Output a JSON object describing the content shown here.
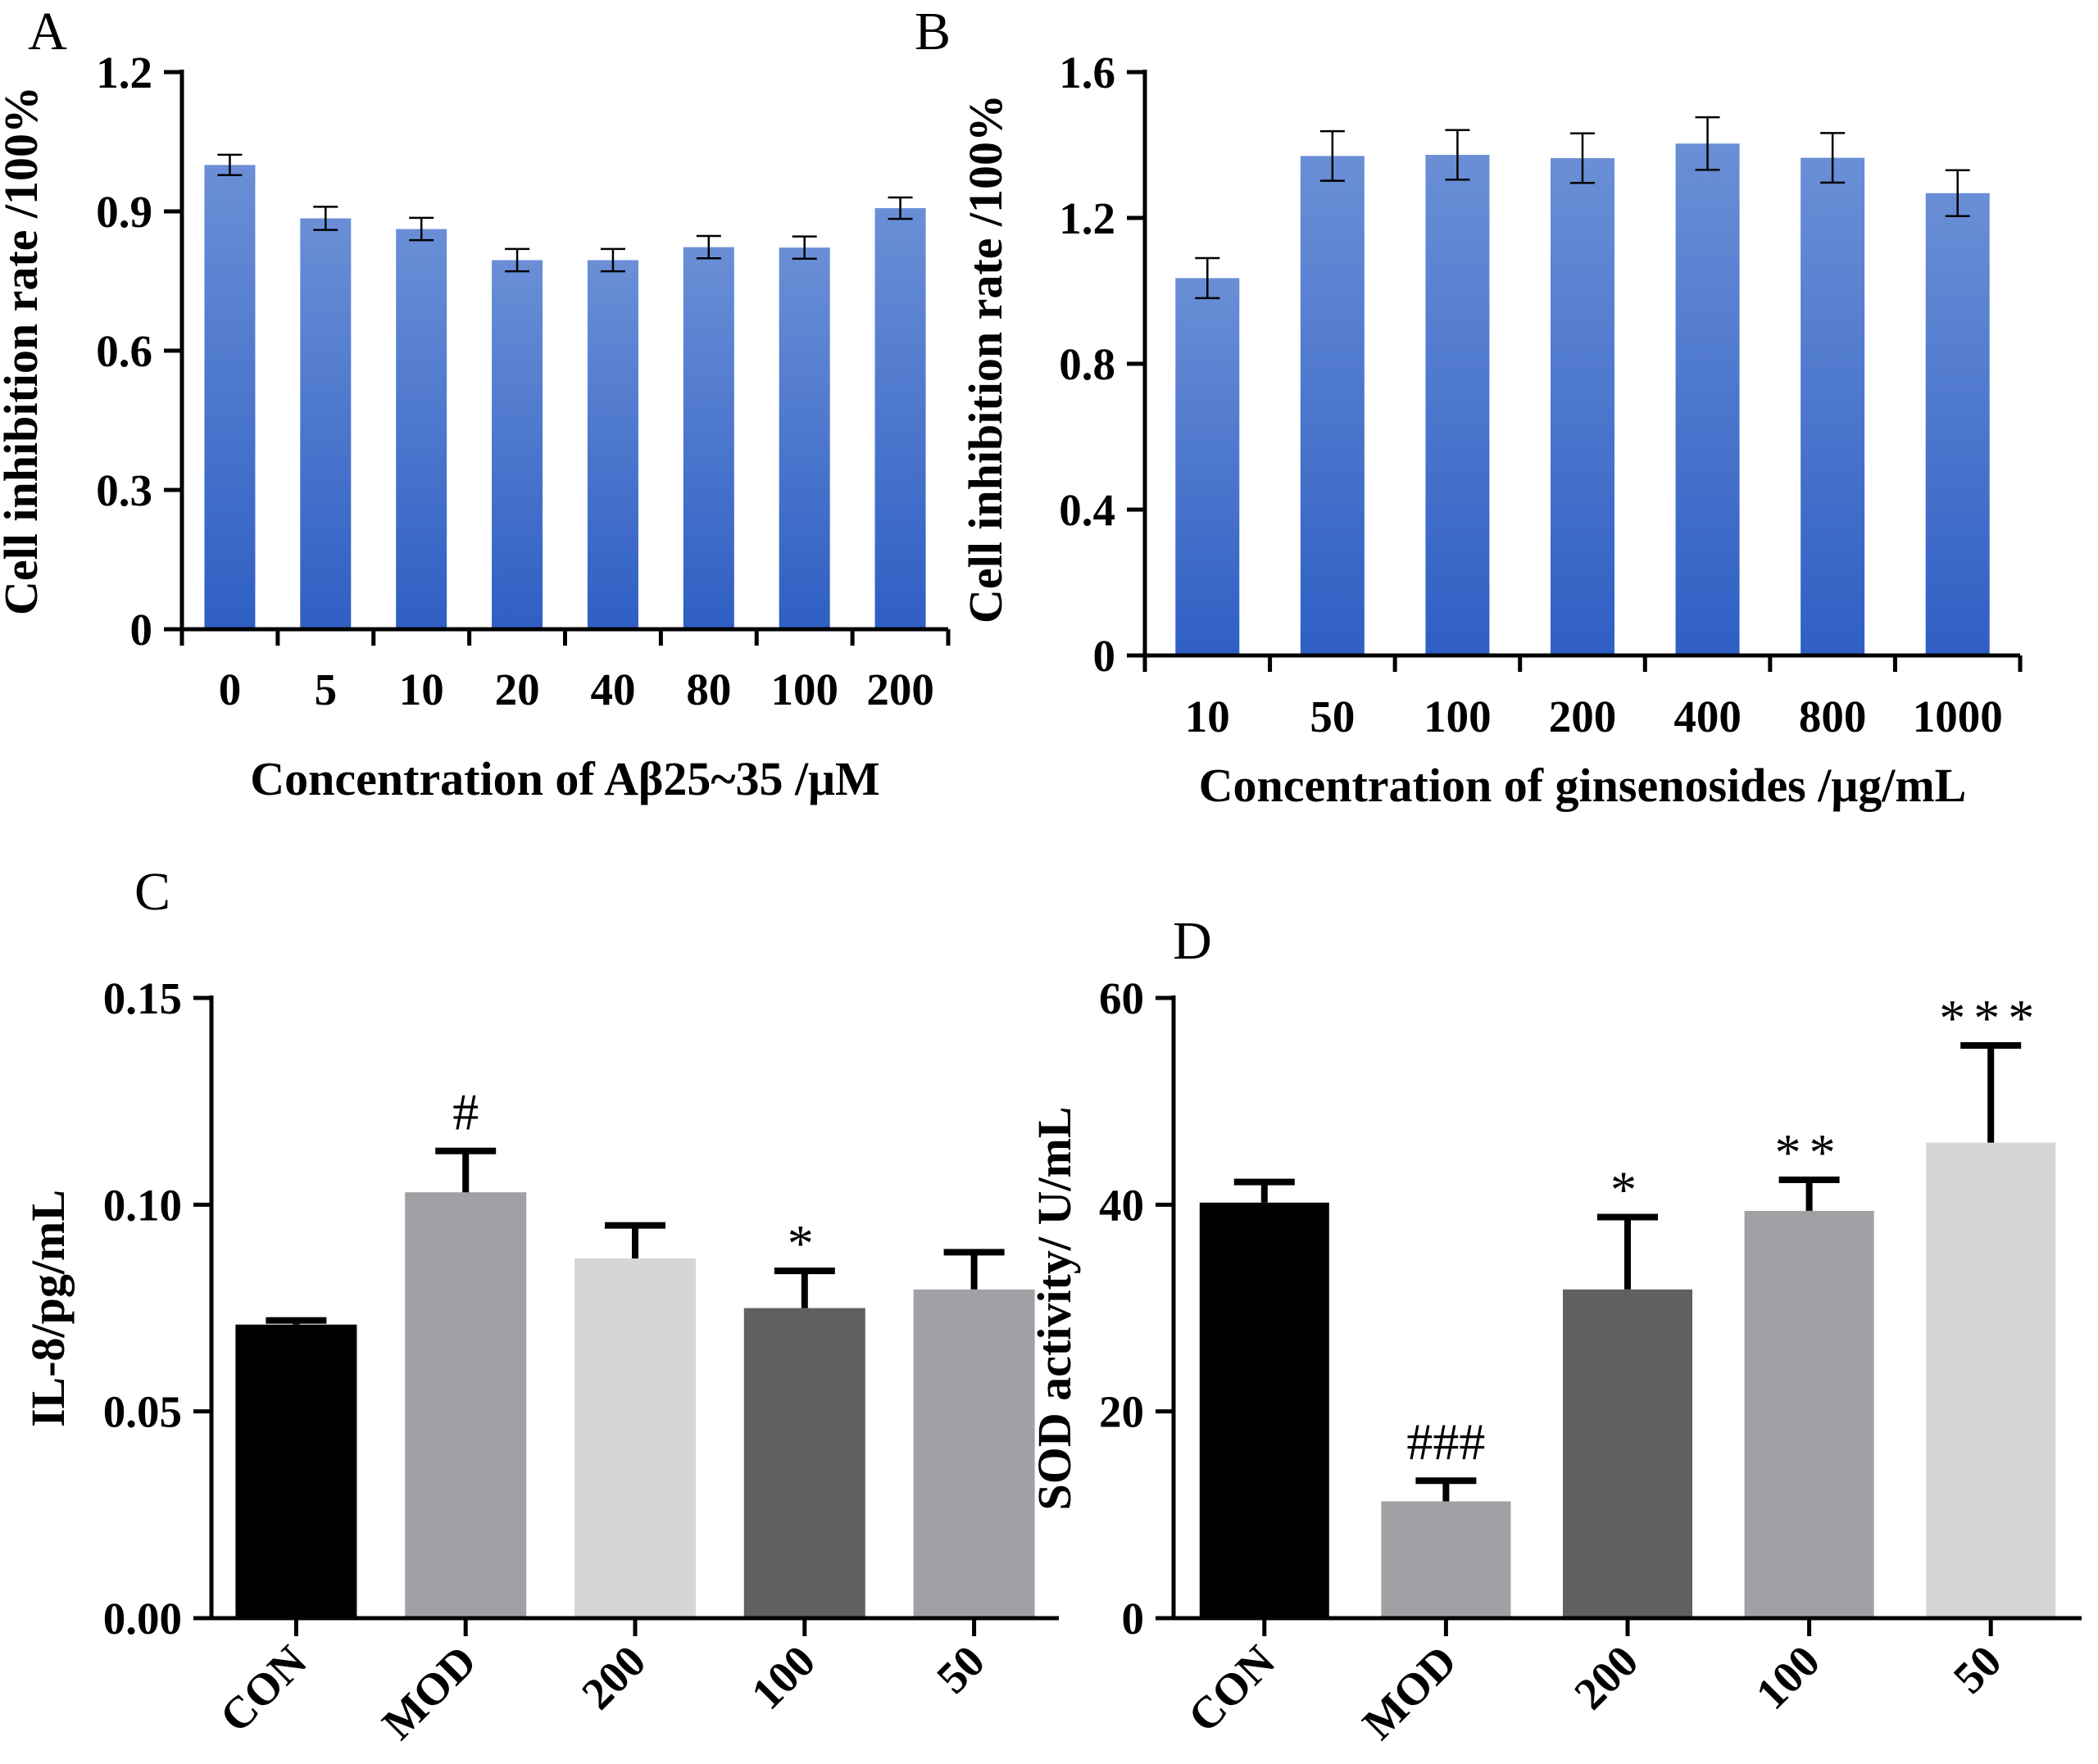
{
  "chart_data": [
    {
      "panel": "A",
      "type": "bar",
      "categories": [
        "0",
        "5",
        "10",
        "20",
        "40",
        "80",
        "100",
        "200"
      ],
      "values": [
        1.0,
        0.885,
        0.862,
        0.795,
        0.795,
        0.823,
        0.822,
        0.907
      ],
      "errors": [
        0.022,
        0.025,
        0.024,
        0.024,
        0.024,
        0.024,
        0.024,
        0.023
      ],
      "xlabel": "Concentration of Aβ25~35 /μM",
      "ylabel": "Cell inhibition rate /100%",
      "ylim": [
        0,
        1.2
      ],
      "yticks": [
        "0",
        "0.3",
        "0.6",
        "0.9",
        "1.2"
      ],
      "color": "#4472c4",
      "annotations": []
    },
    {
      "panel": "B",
      "type": "bar",
      "categories": [
        "10",
        "50",
        "100",
        "200",
        "400",
        "800",
        "1000"
      ],
      "values": [
        1.035,
        1.37,
        1.373,
        1.364,
        1.404,
        1.365,
        1.268
      ],
      "errors": [
        0.055,
        0.068,
        0.068,
        0.068,
        0.072,
        0.068,
        0.063
      ],
      "xlabel": "Concentration of  ginsenosides /μg/mL",
      "ylabel": "Cell inhibition rate /100%",
      "ylim": [
        0,
        1.6
      ],
      "yticks": [
        "0",
        "0.4",
        "0.8",
        "1.2",
        "1.6"
      ],
      "color": "#4472c4",
      "annotations": []
    },
    {
      "panel": "C",
      "type": "bar",
      "categories": [
        "CON",
        "MOD",
        "200",
        "100",
        "50"
      ],
      "values": [
        0.071,
        0.103,
        0.087,
        0.075,
        0.0795
      ],
      "errors": [
        0.001,
        0.01,
        0.008,
        0.009,
        0.009
      ],
      "colors": [
        "#000000",
        "#a0a0a5",
        "#d6d6d6",
        "#606060",
        "#a0a0a5"
      ],
      "xlabel": "",
      "ylabel": "IL-8/pg/mL",
      "ylim": [
        0,
        0.15
      ],
      "yticks": [
        "0.00",
        "0.05",
        "0.10",
        "0.15"
      ],
      "annotations": [
        "",
        "#",
        "",
        "*",
        ""
      ]
    },
    {
      "panel": "D",
      "type": "bar",
      "categories": [
        "CON",
        "MOD",
        "200",
        "100",
        "50"
      ],
      "values": [
        40.2,
        11.3,
        31.8,
        39.4,
        46.0
      ],
      "errors": [
        2.0,
        2.0,
        7.0,
        3.0,
        9.4
      ],
      "colors": [
        "#000000",
        "#a0a0a5",
        "#606060",
        "#a0a0a5",
        "#d6d6d6"
      ],
      "xlabel": "",
      "ylabel": "SOD activity/ U/mL",
      "ylim": [
        0,
        60
      ],
      "yticks": [
        "0",
        "20",
        "40",
        "60"
      ],
      "annotations": [
        "",
        "###",
        "*",
        "**",
        "***"
      ]
    }
  ]
}
